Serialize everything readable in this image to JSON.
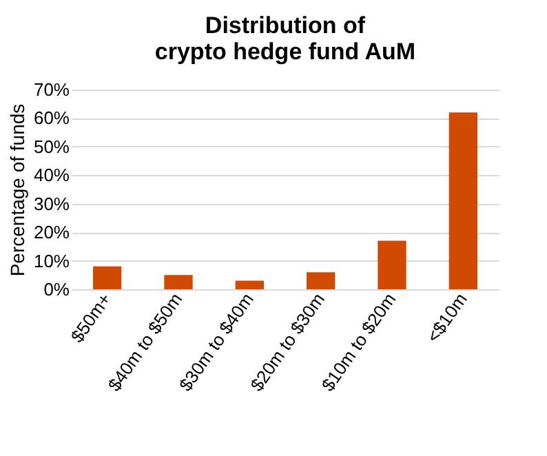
{
  "chart_data": {
    "type": "bar",
    "title": "Distribution of crypto hedge fund AuM",
    "ylabel": "Percentage of funds",
    "categories": [
      "$50m+",
      "$40m to $50m",
      "$30m to $40m",
      "$20m to $30m",
      "$10m to $20m",
      "<$10m"
    ],
    "values": [
      8,
      5,
      3,
      6,
      17,
      62
    ],
    "color": "#d04a02",
    "ylim": [
      0,
      70
    ],
    "yticks": [
      {
        "value": 0,
        "label": "0%"
      },
      {
        "value": 10,
        "label": "10%"
      },
      {
        "value": 20,
        "label": "20%"
      },
      {
        "value": 30,
        "label": "30%"
      },
      {
        "value": 40,
        "label": "40%"
      },
      {
        "value": 50,
        "label": "50%"
      },
      {
        "value": 60,
        "label": "60%"
      },
      {
        "value": 70,
        "label": "70%"
      }
    ],
    "grid": "y"
  }
}
